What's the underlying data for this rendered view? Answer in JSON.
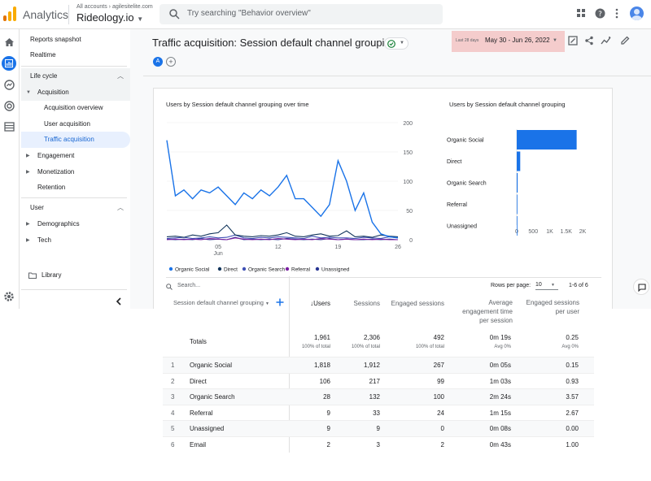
{
  "topbar": {
    "app_name": "Analytics",
    "account_path": "All accounts › agilesitelite.com",
    "property_name": "Rideology.io",
    "search_placeholder": "Try searching \"Behavior overview\""
  },
  "nav": {
    "reports_snapshot": "Reports snapshot",
    "realtime": "Realtime",
    "lifecycle": "Life cycle",
    "acquisition": "Acquisition",
    "acquisition_overview": "Acquisition overview",
    "user_acquisition": "User acquisition",
    "traffic_acquisition": "Traffic acquisition",
    "engagement": "Engagement",
    "monetization": "Monetization",
    "retention": "Retention",
    "user": "User",
    "demographics": "Demographics",
    "tech": "Tech",
    "library": "Library"
  },
  "header": {
    "title": "Traffic acquisition: Session default channel grouping",
    "date_label": "Last 28 days",
    "date_range": "May 30 - Jun 26, 2022",
    "comparison_chip": "A"
  },
  "colors": {
    "organic_social": "#1a73e8",
    "direct": "#12355b",
    "organic_search": "#3f51b5",
    "referral": "#7b1fa2",
    "unassigned": "#283593",
    "accent": "#1a73e8"
  },
  "chart_data": [
    {
      "type": "line",
      "title": "Users by Session default channel grouping over time",
      "x": [
        "May 30",
        "May 31",
        "Jun 1",
        "Jun 2",
        "Jun 3",
        "Jun 4",
        "Jun 5",
        "Jun 6",
        "Jun 7",
        "Jun 8",
        "Jun 9",
        "Jun 10",
        "Jun 11",
        "Jun 12",
        "Jun 13",
        "Jun 14",
        "Jun 15",
        "Jun 16",
        "Jun 17",
        "Jun 18",
        "Jun 19",
        "Jun 20",
        "Jun 21",
        "Jun 22",
        "Jun 23",
        "Jun 24",
        "Jun 25",
        "Jun 26"
      ],
      "xticks": [
        {
          "label": "05",
          "sub": "Jun",
          "index": 6
        },
        {
          "label": "12",
          "sub": "",
          "index": 13
        },
        {
          "label": "19",
          "sub": "",
          "index": 20
        },
        {
          "label": "26",
          "sub": "",
          "index": 27
        }
      ],
      "ylim": [
        0,
        200
      ],
      "yticks": [
        "0",
        "50",
        "100",
        "150",
        "200"
      ],
      "series": [
        {
          "name": "Organic Social",
          "values": [
            170,
            75,
            85,
            70,
            85,
            80,
            90,
            75,
            60,
            80,
            70,
            85,
            75,
            90,
            110,
            70,
            70,
            55,
            40,
            60,
            135,
            100,
            50,
            80,
            30,
            10,
            5,
            3
          ]
        },
        {
          "name": "Direct",
          "values": [
            5,
            6,
            4,
            8,
            6,
            10,
            12,
            25,
            8,
            6,
            5,
            7,
            6,
            8,
            12,
            6,
            5,
            8,
            10,
            6,
            7,
            15,
            5,
            6,
            4,
            8,
            6,
            5
          ]
        },
        {
          "name": "Organic Search",
          "values": [
            2,
            3,
            4,
            2,
            3,
            5,
            3,
            4,
            8,
            3,
            2,
            4,
            3,
            5,
            4,
            3,
            2,
            6,
            3,
            4,
            3,
            3,
            2,
            4,
            3,
            2,
            5,
            3
          ]
        },
        {
          "name": "Referral",
          "values": [
            0,
            1,
            0,
            1,
            0,
            2,
            1,
            0,
            3,
            1,
            0,
            1,
            0,
            2,
            1,
            0,
            1,
            0,
            2,
            1,
            0,
            1,
            0,
            1,
            0,
            1,
            0,
            0
          ]
        },
        {
          "name": "Unassigned",
          "values": [
            1,
            0,
            1,
            0,
            2,
            0,
            1,
            0,
            4,
            0,
            1,
            0,
            1,
            0,
            2,
            1,
            0,
            1,
            0,
            2,
            0,
            1,
            0,
            0,
            1,
            0,
            1,
            0
          ]
        }
      ]
    },
    {
      "type": "bar",
      "title": "Users by Session default channel grouping",
      "orientation": "horizontal",
      "categories": [
        "Organic Social",
        "Direct",
        "Organic Search",
        "Referral",
        "Unassigned"
      ],
      "values": [
        1818,
        106,
        28,
        9,
        9
      ],
      "xlim": [
        0,
        2000
      ],
      "xticks": [
        "0",
        "500",
        "1K",
        "1.5K",
        "2K"
      ]
    }
  ],
  "table": {
    "search_placeholder": "Search...",
    "rows_per_page_label": "Rows per page:",
    "rows_per_page": "10",
    "pagination": "1-6 of 6",
    "dimension_header": "Session default channel grouping",
    "col_users": "↓Users",
    "col_sessions": "Sessions",
    "col_engaged": "Engaged sessions",
    "col_avg_line1": "Average",
    "col_avg_line2": "engagement time",
    "col_avg_line3": "per session",
    "col_eps_line1": "Engaged sessions",
    "col_eps_line2": "per user",
    "totals_label": "Totals",
    "totals": {
      "users": "1,961",
      "users_sub": "100% of total",
      "sessions": "2,306",
      "sessions_sub": "100% of total",
      "engaged": "492",
      "engaged_sub": "100% of total",
      "avg": "0m 19s",
      "avg_sub": "Avg 0%",
      "eps": "0.25",
      "eps_sub": "Avg 0%"
    },
    "rows": [
      {
        "n": "1",
        "name": "Organic Social",
        "users": "1,818",
        "sessions": "1,912",
        "engaged": "267",
        "avg": "0m 05s",
        "eps": "0.15"
      },
      {
        "n": "2",
        "name": "Direct",
        "users": "106",
        "sessions": "217",
        "engaged": "99",
        "avg": "1m 03s",
        "eps": "0.93"
      },
      {
        "n": "3",
        "name": "Organic Search",
        "users": "28",
        "sessions": "132",
        "engaged": "100",
        "avg": "2m 24s",
        "eps": "3.57"
      },
      {
        "n": "4",
        "name": "Referral",
        "users": "9",
        "sessions": "33",
        "engaged": "24",
        "avg": "1m 15s",
        "eps": "2.67"
      },
      {
        "n": "5",
        "name": "Unassigned",
        "users": "9",
        "sessions": "9",
        "engaged": "0",
        "avg": "0m 08s",
        "eps": "0.00"
      },
      {
        "n": "6",
        "name": "Email",
        "users": "2",
        "sessions": "3",
        "engaged": "2",
        "avg": "0m 43s",
        "eps": "1.00"
      }
    ]
  }
}
